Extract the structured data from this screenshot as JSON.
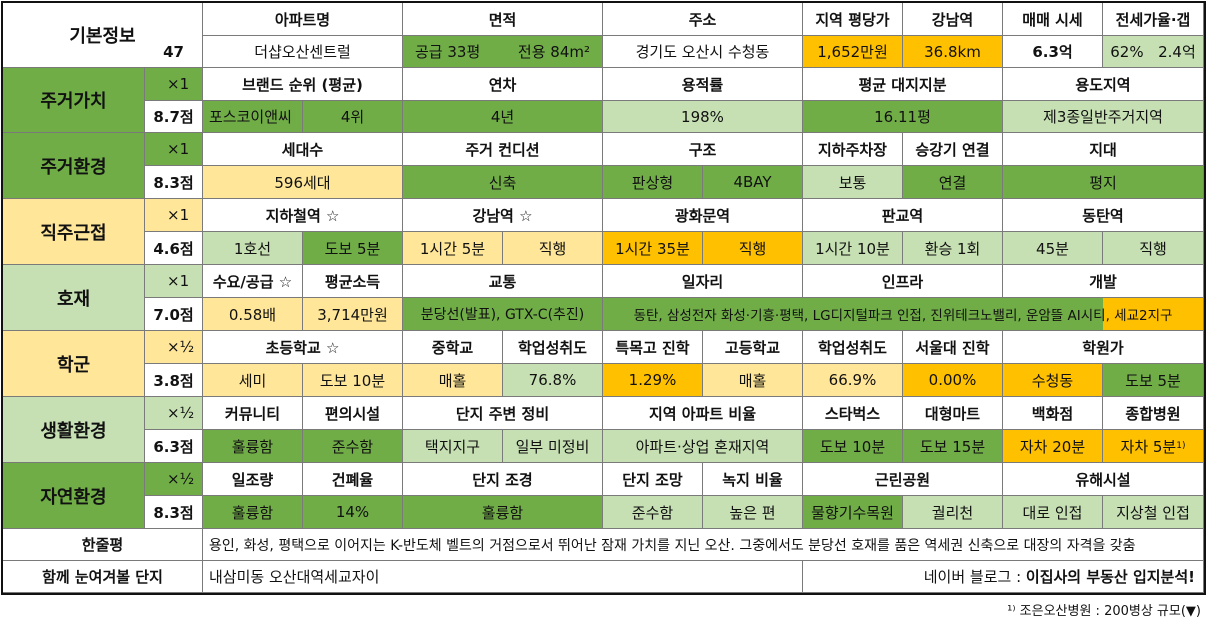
{
  "basic": {
    "label": "기본정보",
    "number": "47",
    "headers": [
      "아파트명",
      "면적",
      "주소",
      "지역 평당가",
      "강남역",
      "매매 시세",
      "전세가율·갭"
    ],
    "apt_name": "더샵오산센트럴",
    "area_supply": "공급 33평",
    "area_exclusive": "전용 84m²",
    "address": "경기도 오산시 수청동",
    "price_per_pyeong": "1,652만원",
    "gangnam_distance": "36.8km",
    "sale_price": "6.3억",
    "jeonse_ratio": "62%",
    "gap": "2.4억"
  },
  "categories": {
    "c1": {
      "name": "주거가치",
      "mult": "×1",
      "score": "8.7점"
    },
    "c2": {
      "name": "주거환경",
      "mult": "×1",
      "score": "8.3점"
    },
    "c3": {
      "name": "직주근접",
      "mult": "×1",
      "score": "4.6점"
    },
    "c4": {
      "name": "호재",
      "mult": "×1",
      "score": "7.0점"
    },
    "c5": {
      "name": "학군",
      "mult": "×½",
      "score": "3.8점"
    },
    "c6": {
      "name": "생활환경",
      "mult": "×½",
      "score": "6.3점"
    },
    "c7": {
      "name": "자연환경",
      "mult": "×½",
      "score": "8.3점"
    }
  },
  "r1": {
    "h": [
      "브랜드 순위 (평균)",
      "연차",
      "용적률",
      "평균 대지지분",
      "용도지역"
    ],
    "v": [
      "포스코이앤씨",
      "4위",
      "4년",
      "198%",
      "16.11평",
      "제3종일반주거지역"
    ]
  },
  "r2": {
    "h": [
      "세대수",
      "주거 컨디션",
      "구조",
      "지하주차장",
      "승강기 연결",
      "지대"
    ],
    "v": [
      "596세대",
      "신축",
      "판상형",
      "4BAY",
      "보통",
      "연결",
      "평지"
    ]
  },
  "r3": {
    "h": [
      "지하철역 ☆",
      "강남역 ☆",
      "광화문역",
      "판교역",
      "동탄역"
    ],
    "v": [
      "1호선",
      "도보 5분",
      "1시간 5분",
      "직행",
      "1시간 35분",
      "직행",
      "1시간 10분",
      "환승 1회",
      "45분",
      "직행"
    ]
  },
  "r4": {
    "h": [
      "수요/공급 ☆",
      "평균소득",
      "교통",
      "일자리",
      "인프라",
      "개발"
    ],
    "v": [
      "0.58배",
      "3,714만원",
      "분당선(발표), GTX-C(추진)",
      "동탄, 삼성전자 화성·기흥·평택, LG디지털파크 인접, 진위테크노밸리, 운암뜰 AI시티, 세교2지구"
    ]
  },
  "r5": {
    "h": [
      "초등학교 ☆",
      "중학교",
      "학업성취도",
      "특목고 진학",
      "고등학교",
      "학업성취도",
      "서울대 진학",
      "학원가"
    ],
    "v": [
      "세미",
      "도보 10분",
      "매홀",
      "76.8%",
      "1.29%",
      "매홀",
      "66.9%",
      "0.00%",
      "수청동",
      "도보 5분"
    ]
  },
  "r6": {
    "h": [
      "커뮤니티",
      "편의시설",
      "단지 주변 정비",
      "지역 아파트 비율",
      "스타벅스",
      "대형마트",
      "백화점",
      "종합병원"
    ],
    "v": [
      "훌륭함",
      "준수함",
      "택지지구",
      "일부 미정비",
      "아파트·상업 혼재지역",
      "도보 10분",
      "도보 15분",
      "자차 20분",
      "자차 5분"
    ],
    "sup": "1)"
  },
  "r7": {
    "h": [
      "일조량",
      "건폐율",
      "단지 조경",
      "단지 조망",
      "녹지 비율",
      "근린공원",
      "유해시설"
    ],
    "v": [
      "훌륭함",
      "14%",
      "훌륭함",
      "준수함",
      "높은 편",
      "물향기수목원",
      "궐리천",
      "대로 인접",
      "지상철 인접"
    ]
  },
  "summary": {
    "label": "한줄평",
    "text": "용인, 화성, 평택으로 이어지는 K-반도체 벨트의 거점으로서 뛰어난 잠재 가치를 지닌 오산. 그중에서도 분당선 호재를 품은 역세권 신축으로 대장의 자격을 갖춤"
  },
  "related": {
    "label": "함께 눈여겨볼 단지",
    "text": "내삼미동 오산대역세교자이",
    "blog_prefix": "네이버 블로그 : ",
    "blog_name": "이집사의 부동산 입지분석!"
  },
  "footnote": "¹⁾ 조은오산병원 : 200병상 규모(▼)"
}
